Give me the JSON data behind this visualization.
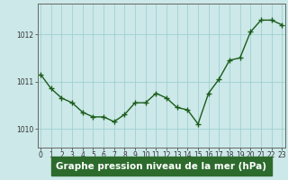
{
  "x": [
    0,
    1,
    2,
    3,
    4,
    5,
    6,
    7,
    8,
    9,
    10,
    11,
    12,
    13,
    14,
    15,
    16,
    17,
    18,
    19,
    20,
    21,
    22,
    23
  ],
  "y": [
    1011.15,
    1010.85,
    1010.65,
    1010.55,
    1010.35,
    1010.25,
    1010.25,
    1010.15,
    1010.3,
    1010.55,
    1010.55,
    1010.75,
    1010.65,
    1010.45,
    1010.4,
    1010.1,
    1010.75,
    1011.05,
    1011.45,
    1011.5,
    1012.05,
    1012.3,
    1012.3,
    1012.2
  ],
  "line_color": "#1a5c1a",
  "marker": "+",
  "marker_size": 4,
  "line_width": 1.0,
  "bg_color": "#cce8e8",
  "plot_bg_color": "#cce8e8",
  "grid_color": "#99cccc",
  "xlabel": "Graphe pression niveau de la mer (hPa)",
  "yticks": [
    1010,
    1011,
    1012
  ],
  "ylim": [
    1009.6,
    1012.65
  ],
  "xlim": [
    -0.3,
    23.3
  ],
  "xtick_labels": [
    "0",
    "1",
    "2",
    "3",
    "4",
    "5",
    "6",
    "7",
    "8",
    "9",
    "10",
    "11",
    "12",
    "13",
    "14",
    "15",
    "16",
    "17",
    "18",
    "19",
    "20",
    "21",
    "22",
    "23"
  ],
  "title_fontsize": 7.5,
  "tick_fontsize": 5.5,
  "xlabel_color": "#1a5c1a",
  "xlabel_bg": "#2d6b2d",
  "spine_color": "#666666"
}
